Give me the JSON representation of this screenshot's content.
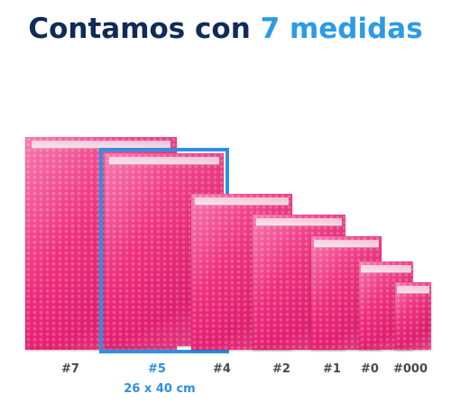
{
  "heading": {
    "text": "Contamos con ",
    "accent": "7 medidas"
  },
  "colors": {
    "navy": "#0f2b57",
    "blue": "#2b9be8",
    "pink": "#ee2f7c",
    "frame": "#2d8fe3"
  },
  "sizes": [
    {
      "label": "#7"
    },
    {
      "label": "#5",
      "selected": true,
      "dimensions": "26 x 40 cm"
    },
    {
      "label": "#4"
    },
    {
      "label": "#2"
    },
    {
      "label": "#1"
    },
    {
      "label": "#0"
    },
    {
      "label": "#000"
    }
  ]
}
